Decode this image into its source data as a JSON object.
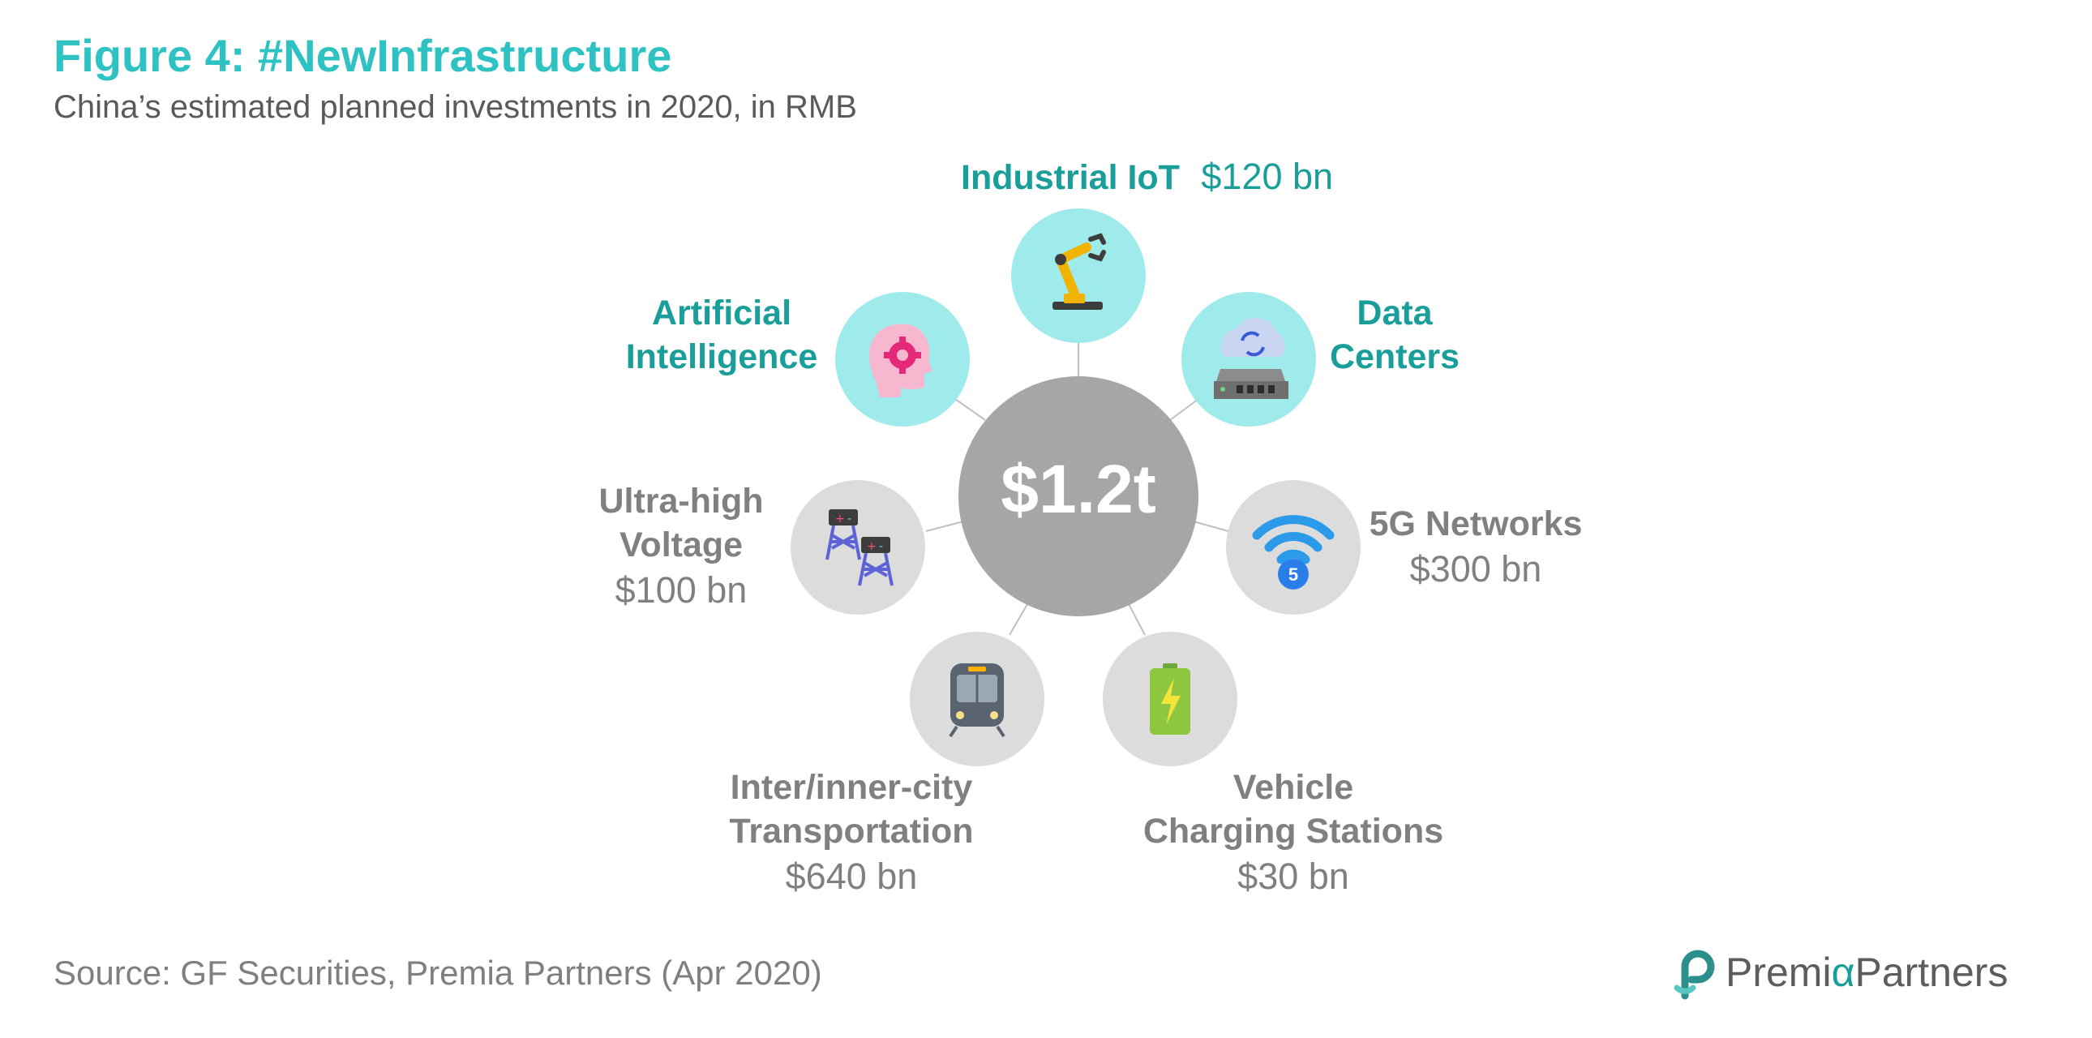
{
  "header": {
    "title": "Figure 4: #NewInfrastructure",
    "subtitle": "China’s estimated planned investments in 2020, in RMB"
  },
  "center": {
    "value": "$1.2t"
  },
  "sectors": [
    {
      "key": "industrial-iot",
      "name_line1": "Industrial IoT",
      "name_line2": "",
      "amount": "$120 bn",
      "icon": "robot-arm-icon",
      "highlight": true
    },
    {
      "key": "artificial-intelligence",
      "name_line1": "Artificial",
      "name_line2": "Intelligence",
      "amount": "",
      "icon": "brain-gear-icon",
      "highlight": true
    },
    {
      "key": "data-centers",
      "name_line1": "Data",
      "name_line2": "Centers",
      "amount": "",
      "icon": "cloud-server-icon",
      "highlight": true
    },
    {
      "key": "ultra-high-voltage",
      "name_line1": "Ultra-high",
      "name_line2": "Voltage",
      "amount": "$100 bn",
      "icon": "power-tower-icon",
      "highlight": false
    },
    {
      "key": "5g-networks",
      "name_line1": "5G Networks",
      "name_line2": "",
      "amount": "$300 bn",
      "icon": "wifi-5g-icon",
      "highlight": false
    },
    {
      "key": "transportation",
      "name_line1": "Inter/inner-city",
      "name_line2": "Transportation",
      "amount": "$640 bn",
      "icon": "train-icon",
      "highlight": false
    },
    {
      "key": "charging-stations",
      "name_line1": "Vehicle",
      "name_line2": "Charging Stations",
      "amount": "$30 bn",
      "icon": "battery-charging-icon",
      "highlight": false
    }
  ],
  "footer": {
    "source": "Source: GF Securities, Premia Partners (Apr 2020)",
    "logo_part1": "Premi",
    "logo_alpha": "α",
    "logo_part2": "Partners"
  },
  "colors": {
    "title": "#2fc2c2",
    "highlight_text": "#1a9e9a",
    "highlight_circle": "#9feaea",
    "grey_text": "#808080",
    "grey_circle": "#dcdcdc",
    "center_circle": "#a6a6a6"
  }
}
